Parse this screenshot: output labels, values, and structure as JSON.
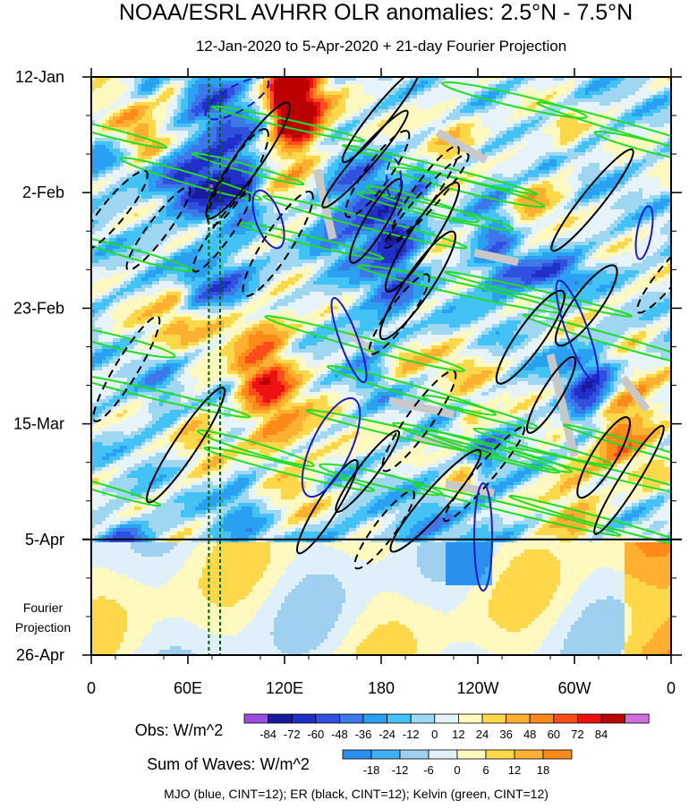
{
  "chart_data": {
    "type": "heatmap",
    "title": "NOAA/ESRL AVHRR OLR anomalies: 2.5°N - 7.5°N",
    "subtitle": "12-Jan-2020 to 5-Apr-2020 + 21-day Fourier Projection",
    "x_tick_labels": [
      "0",
      "60E",
      "120E",
      "180",
      "120W",
      "60W",
      "0"
    ],
    "x_tick_degrees": [
      0,
      60,
      120,
      180,
      240,
      300,
      360
    ],
    "xlim": [
      0,
      360
    ],
    "y_tick_labels": [
      "12-Jan",
      "2-Feb",
      "23-Feb",
      "15-Mar",
      "5-Apr",
      "26-Apr"
    ],
    "y_tick_days": [
      0,
      21,
      42,
      63,
      84,
      105
    ],
    "ylim_days": [
      0,
      105
    ],
    "projection_start_day": 84,
    "projection_label": "Fourier\nProjection",
    "obs_colorbar": {
      "label": "Obs: W/m^2",
      "levels": [
        -84,
        -72,
        -60,
        -48,
        -36,
        -24,
        -12,
        0,
        12,
        24,
        36,
        48,
        60,
        72,
        84
      ],
      "colors": [
        "#9b4fe0",
        "#1a1a9e",
        "#1f2fc8",
        "#3050e0",
        "#3d78ea",
        "#2aa0f2",
        "#43c2f5",
        "#9fd6f2",
        "#e6f3fb",
        "#fff9c0",
        "#ffd84a",
        "#ffb030",
        "#ff8a1a",
        "#ff4e1a",
        "#ee1111",
        "#bb0000",
        "#d070e0"
      ]
    },
    "waves_colorbar": {
      "label": "Sum of Waves: W/m^2",
      "levels": [
        -18,
        -12,
        -6,
        0,
        6,
        12,
        18
      ],
      "colors": [
        "#2a90ee",
        "#3fb0f5",
        "#9fd0f0",
        "#e0f0fa",
        "#fff9c0",
        "#ffd84a",
        "#ffb030",
        "#ff8a1a"
      ]
    },
    "overlays": [
      {
        "name": "MJO",
        "color": "#1a1ac8"
      },
      {
        "name": "ER",
        "color": "#000000"
      },
      {
        "name": "Kelvin",
        "color": "#22dd22"
      }
    ],
    "reference_lines_lon": [
      73,
      80
    ],
    "reference_line_color": "#006400",
    "footer": "MJO (blue, CINT=12); ER (black, CINT=12); Kelvin (green, CINT=12)"
  }
}
